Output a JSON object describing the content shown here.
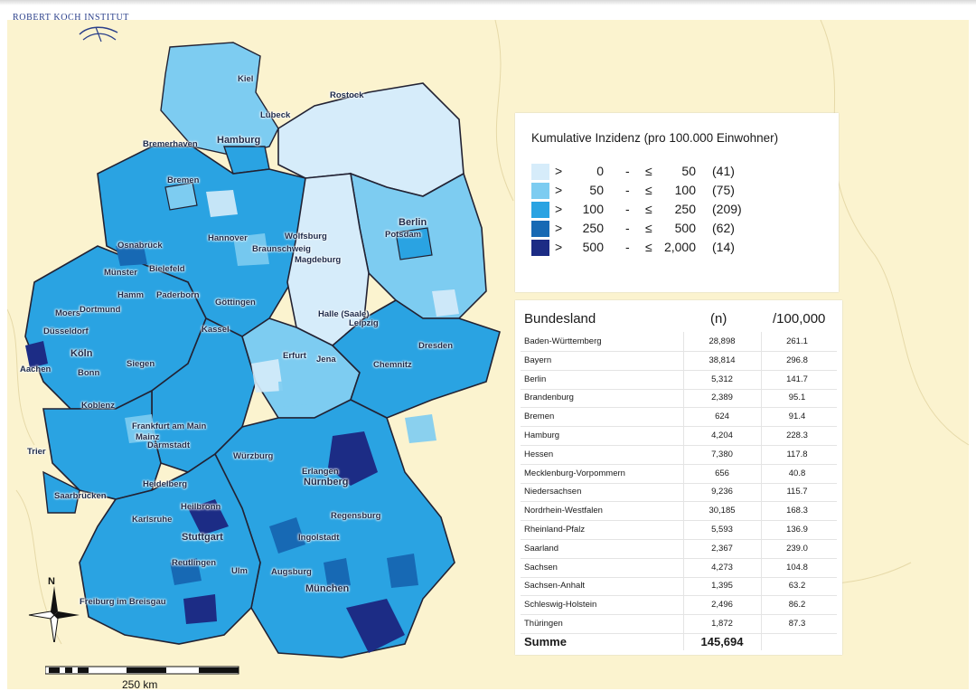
{
  "header": {
    "logo_text": "ROBERT KOCH INSTITUT"
  },
  "legend": {
    "title": "Kumulative Inzidenz (pro 100.000 Einwohner)",
    "rows": [
      {
        "gt": ">",
        "from": "0",
        "dash": "-",
        "le": "≤",
        "to": "50",
        "count": "(41)",
        "color": "#d6ecfa"
      },
      {
        "gt": ">",
        "from": "50",
        "dash": "-",
        "le": "≤",
        "to": "100",
        "count": "(75)",
        "color": "#7dccf1"
      },
      {
        "gt": ">",
        "from": "100",
        "dash": "-",
        "le": "≤",
        "to": "250",
        "count": "(209)",
        "color": "#2aa3e2"
      },
      {
        "gt": ">",
        "from": "250",
        "dash": "-",
        "le": "≤",
        "to": "500",
        "count": "(62)",
        "color": "#1769b4"
      },
      {
        "gt": ">",
        "from": "500",
        "dash": "-",
        "le": "≤",
        "to": "2,000",
        "count": "(14)",
        "color": "#1c2c85"
      }
    ]
  },
  "table": {
    "headers": [
      "Bundesland",
      "(n)",
      "/100,000"
    ],
    "rows": [
      [
        "Baden-Württemberg",
        "28,898",
        "261.1"
      ],
      [
        "Bayern",
        "38,814",
        "296.8"
      ],
      [
        "Berlin",
        "5,312",
        "141.7"
      ],
      [
        "Brandenburg",
        "2,389",
        "95.1"
      ],
      [
        "Bremen",
        "624",
        "91.4"
      ],
      [
        "Hamburg",
        "4,204",
        "228.3"
      ],
      [
        "Hessen",
        "7,380",
        "117.8"
      ],
      [
        "Mecklenburg-Vorpommern",
        "656",
        "40.8"
      ],
      [
        "Niedersachsen",
        "9,236",
        "115.7"
      ],
      [
        "Nordrhein-Westfalen",
        "30,185",
        "168.3"
      ],
      [
        "Rheinland-Pfalz",
        "5,593",
        "136.9"
      ],
      [
        "Saarland",
        "2,367",
        "239.0"
      ],
      [
        "Sachsen",
        "4,273",
        "104.8"
      ],
      [
        "Sachsen-Anhalt",
        "1,395",
        "63.2"
      ],
      [
        "Schleswig-Holstein",
        "2,496",
        "86.2"
      ],
      [
        "Thüringen",
        "1,872",
        "87.3"
      ]
    ],
    "sum_label": "Summe",
    "sum_value": "145,694"
  },
  "map": {
    "compass_label": "N",
    "scale_label": "250 km",
    "cities": [
      "Kiel",
      "Rostock",
      "Lübeck",
      "Bremerhaven",
      "Hamburg",
      "Bremen",
      "Berlin",
      "Potsdam",
      "Osnabrück",
      "Hannover",
      "Wolfsburg",
      "Braunschweig",
      "Magdeburg",
      "Münster",
      "Bielefeld",
      "Hamm",
      "Paderborn",
      "Moers",
      "Dortmund",
      "Göttingen",
      "Halle (Saale)",
      "Leipzig",
      "Düsseldorf",
      "Kassel",
      "Köln",
      "Dresden",
      "Aachen",
      "Bonn",
      "Siegen",
      "Erfurt",
      "Jena",
      "Chemnitz",
      "Koblenz",
      "Frankfurt am Main",
      "Mainz",
      "Darmstadt",
      "Trier",
      "Würzburg",
      "Erlangen",
      "Nürnberg",
      "Heidelberg",
      "Saarbrücken",
      "Heilbronn",
      "Regensburg",
      "Karlsruhe",
      "Stuttgart",
      "Ingolstadt",
      "Reutlingen",
      "Ulm",
      "Augsburg",
      "München",
      "Freiburg im Breisgau"
    ]
  },
  "colors": {
    "background": "#fbf3cf",
    "bins": [
      "#d6ecfa",
      "#7dccf1",
      "#2aa3e2",
      "#1769b4",
      "#1c2c85"
    ]
  }
}
